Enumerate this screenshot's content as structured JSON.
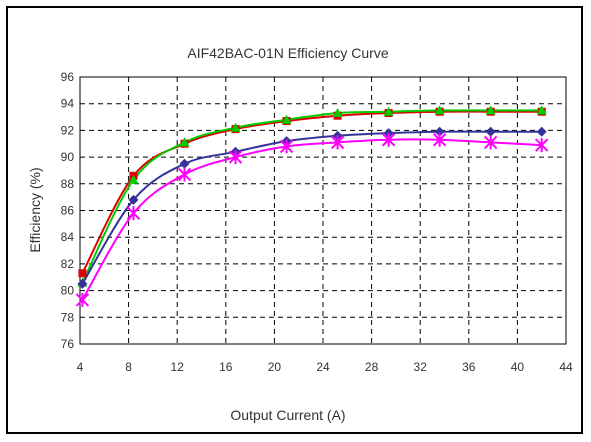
{
  "chart_data": {
    "type": "line",
    "title": "AIF42BAC-01N  Efficiency Curve",
    "xlabel": "Output Current (A)",
    "ylabel": "Efficiency (%)",
    "xlim": [
      4,
      44
    ],
    "ylim": [
      76,
      96
    ],
    "x_ticks": [
      4,
      8,
      12,
      16,
      20,
      24,
      28,
      32,
      36,
      40,
      44
    ],
    "y_ticks": [
      76,
      78,
      80,
      82,
      84,
      86,
      88,
      90,
      92,
      94,
      96
    ],
    "grid": "dashed",
    "legend": "none",
    "x": [
      4.2,
      8.4,
      12.6,
      16.8,
      21.0,
      25.2,
      29.4,
      33.6,
      37.8,
      42.0
    ],
    "series": [
      {
        "color": "#dd0000",
        "marker": "square",
        "values": [
          81.3,
          88.6,
          91.0,
          92.1,
          92.7,
          93.1,
          93.3,
          93.4,
          93.4,
          93.4
        ]
      },
      {
        "color": "#00cc00",
        "marker": "triangle",
        "values": [
          80.6,
          88.3,
          91.1,
          92.2,
          92.8,
          93.3,
          93.4,
          93.5,
          93.5,
          93.5
        ]
      },
      {
        "color": "#333399",
        "marker": "diamond",
        "values": [
          80.5,
          86.8,
          89.5,
          90.4,
          91.2,
          91.6,
          91.8,
          91.9,
          91.9,
          91.9
        ]
      },
      {
        "color": "#ff00ff",
        "marker": "star",
        "values": [
          79.3,
          85.8,
          88.7,
          90.0,
          90.8,
          91.1,
          91.3,
          91.3,
          91.1,
          90.9
        ]
      }
    ]
  }
}
